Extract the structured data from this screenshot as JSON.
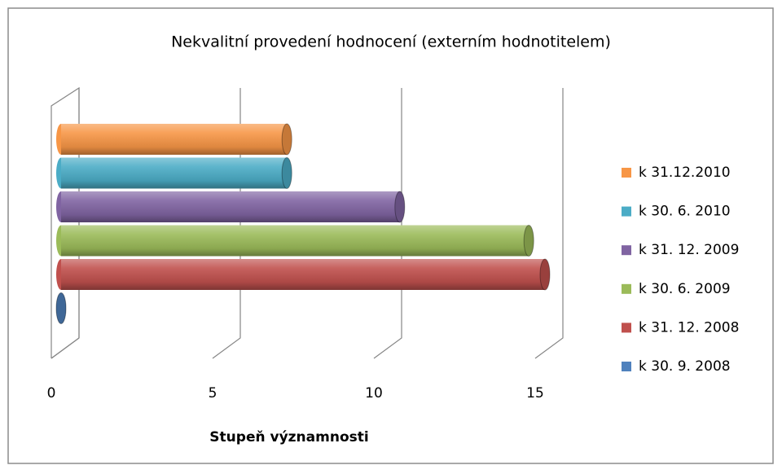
{
  "chart_data": {
    "type": "bar3d",
    "orientation": "horizontal",
    "title": "Nekvalitní provedení hodnocení (externím hodnotitelem)",
    "xlabel": "Stupeň významnosti",
    "categories": [
      null
    ],
    "series": [
      {
        "name": "k 30. 9. 2008",
        "color": "#4f81bd",
        "values": [
          0
        ]
      },
      {
        "name": "k 31. 12. 2008",
        "color": "#c0504d",
        "values": [
          15
        ]
      },
      {
        "name": "k 30. 6. 2009",
        "color": "#9bbb59",
        "values": [
          14.5
        ]
      },
      {
        "name": "k 31. 12. 2009",
        "color": "#8064a2",
        "values": [
          10.5
        ]
      },
      {
        "name": "k 30. 6. 2010",
        "color": "#4bacc6",
        "values": [
          7
        ]
      },
      {
        "name": "k 31.12.2010",
        "color": "#f79646",
        "values": [
          7
        ]
      }
    ],
    "xlim": [
      0,
      15
    ],
    "xticks": [
      0,
      5,
      10,
      15
    ],
    "grid": true,
    "legend": "right"
  }
}
